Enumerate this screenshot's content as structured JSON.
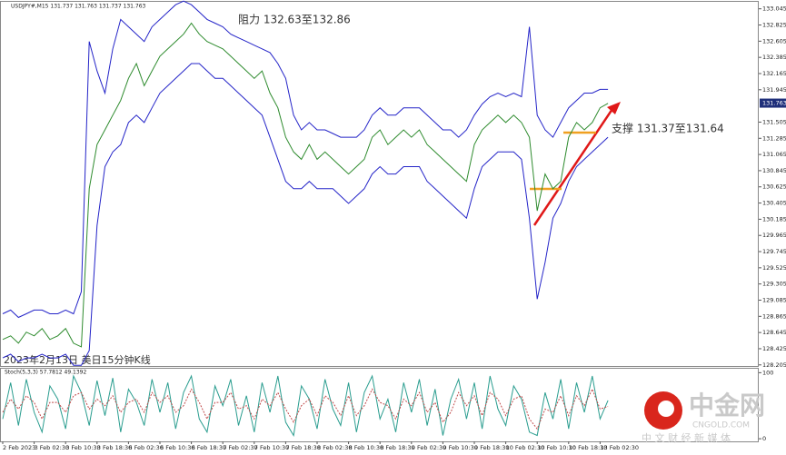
{
  "chart_data": [
    {
      "type": "line",
      "title": "USDJPY#,M15 131.737 131.763 131.737 131.763",
      "annotations": [
        "阻力 132.63至132.86",
        "支撑 131.37至131.64",
        "2023年2月13日 美日15分钟K线"
      ],
      "current_price": 131.763,
      "ylim": [
        128.19,
        133.14
      ],
      "yticks": [
        133.045,
        132.825,
        132.605,
        132.385,
        132.165,
        131.945,
        131.505,
        131.285,
        131.065,
        130.845,
        130.625,
        130.405,
        130.185,
        129.965,
        129.745,
        129.525,
        129.305,
        129.085,
        128.865,
        128.645,
        128.425,
        128.205
      ],
      "series": [
        {
          "name": "close",
          "color": "#2e8b2e",
          "values": [
            128.55,
            128.6,
            128.5,
            128.65,
            128.6,
            128.7,
            128.55,
            128.6,
            128.7,
            128.5,
            128.45,
            130.6,
            131.2,
            131.4,
            131.6,
            131.8,
            132.1,
            132.3,
            132.0,
            132.2,
            132.4,
            132.5,
            132.6,
            132.7,
            132.85,
            132.7,
            132.6,
            132.55,
            132.5,
            132.4,
            132.3,
            132.2,
            132.1,
            132.2,
            131.9,
            131.7,
            131.3,
            131.1,
            131.0,
            131.2,
            131.0,
            131.1,
            131.0,
            130.9,
            130.8,
            130.9,
            131.0,
            131.3,
            131.4,
            131.2,
            131.3,
            131.4,
            131.3,
            131.4,
            131.2,
            131.1,
            131.0,
            130.9,
            130.8,
            130.7,
            131.2,
            131.4,
            131.5,
            131.6,
            131.5,
            131.6,
            131.5,
            131.3,
            130.3,
            130.8,
            130.6,
            130.7,
            131.3,
            131.5,
            131.4,
            131.5,
            131.7,
            131.76
          ]
        },
        {
          "name": "upper",
          "color": "#2424c8",
          "values": [
            128.9,
            128.95,
            128.85,
            128.9,
            128.95,
            128.95,
            128.9,
            128.9,
            128.95,
            128.9,
            129.2,
            132.6,
            132.2,
            131.9,
            132.5,
            132.9,
            132.8,
            132.7,
            132.6,
            132.8,
            132.9,
            133.0,
            133.1,
            133.15,
            133.1,
            133.0,
            132.9,
            132.85,
            132.8,
            132.7,
            132.65,
            132.6,
            132.55,
            132.5,
            132.45,
            132.3,
            132.1,
            131.6,
            131.4,
            131.5,
            131.4,
            131.4,
            131.35,
            131.3,
            131.3,
            131.3,
            131.4,
            131.6,
            131.7,
            131.6,
            131.6,
            131.7,
            131.7,
            131.7,
            131.6,
            131.5,
            131.4,
            131.4,
            131.3,
            131.4,
            131.6,
            131.75,
            131.85,
            131.9,
            131.85,
            131.9,
            131.85,
            132.8,
            131.6,
            131.4,
            131.3,
            131.5,
            131.7,
            131.8,
            131.9,
            131.9,
            131.95,
            131.95
          ]
        },
        {
          "name": "lower",
          "color": "#2424c8",
          "values": [
            128.3,
            128.35,
            128.25,
            128.3,
            128.3,
            128.35,
            128.3,
            128.3,
            128.35,
            128.2,
            128.2,
            128.4,
            130.1,
            130.9,
            131.1,
            131.2,
            131.5,
            131.6,
            131.5,
            131.7,
            131.9,
            132.0,
            132.1,
            132.2,
            132.3,
            132.3,
            132.2,
            132.1,
            132.1,
            132.0,
            131.9,
            131.8,
            131.7,
            131.6,
            131.3,
            131.0,
            130.7,
            130.6,
            130.6,
            130.7,
            130.6,
            130.6,
            130.6,
            130.5,
            130.4,
            130.5,
            130.6,
            130.8,
            130.9,
            130.8,
            130.8,
            130.9,
            130.9,
            130.9,
            130.7,
            130.6,
            130.5,
            130.4,
            130.3,
            130.2,
            130.6,
            130.9,
            131.0,
            131.1,
            131.1,
            131.1,
            131.0,
            130.2,
            129.1,
            129.6,
            130.2,
            130.4,
            130.7,
            130.9,
            131.0,
            131.1,
            131.2,
            131.3
          ]
        }
      ]
    },
    {
      "type": "line",
      "title": "Stoch(5,3,3) 57.7812 49.1392",
      "ylim": [
        -4,
        106
      ],
      "yticks": [
        100,
        0
      ],
      "categories": [
        "2 Feb 2023",
        null,
        null,
        null,
        "3 Feb 02:30",
        null,
        null,
        null,
        "3 Feb 10:30",
        null,
        null,
        null,
        "3 Feb 18:30",
        null,
        null,
        null,
        "6 Feb 02:30",
        null,
        null,
        null,
        "6 Feb 10:30",
        null,
        null,
        null,
        "6 Feb 18:30",
        null,
        null,
        null,
        "7 Feb 02:30",
        null,
        null,
        null,
        "7 Feb 10:30",
        null,
        null,
        null,
        "7 Feb 18:30",
        null,
        null,
        null,
        "8 Feb 02:30",
        null,
        null,
        null,
        "8 Feb 10:30",
        null,
        null,
        null,
        "8 Feb 18:30",
        null,
        null,
        null,
        "9 Feb 02:30",
        null,
        null,
        null,
        "9 Feb 10:30",
        null,
        null,
        null,
        "9 Feb 18:30",
        null,
        null,
        null,
        "10 Feb 02:30",
        null,
        null,
        null,
        "10 Feb 10:30",
        null,
        null,
        null,
        "10 Feb 18:30",
        null,
        null,
        null,
        "13 Feb 02:30",
        null
      ],
      "series": [
        {
          "name": "main",
          "color": "#2a9d8f",
          "values": [
            30,
            85,
            20,
            90,
            40,
            10,
            80,
            60,
            15,
            95,
            70,
            20,
            88,
            35,
            92,
            10,
            75,
            55,
            20,
            90,
            40,
            85,
            15,
            70,
            95,
            30,
            10,
            80,
            50,
            90,
            20,
            65,
            10,
            85,
            40,
            95,
            25,
            5,
            80,
            60,
            15,
            90,
            45,
            20,
            85,
            10,
            70,
            95,
            30,
            60,
            10,
            85,
            40,
            90,
            20,
            75,
            5,
            60,
            90,
            30,
            85,
            15,
            95,
            45,
            20,
            80,
            60,
            10,
            5,
            70,
            30,
            90,
            15,
            85,
            40,
            95,
            30,
            58
          ]
        },
        {
          "name": "signal",
          "color": "#c04a4a",
          "values": [
            40,
            60,
            45,
            65,
            55,
            30,
            55,
            55,
            40,
            65,
            70,
            45,
            60,
            50,
            65,
            40,
            55,
            60,
            40,
            70,
            55,
            65,
            40,
            50,
            75,
            55,
            30,
            55,
            55,
            70,
            45,
            50,
            30,
            60,
            50,
            70,
            45,
            25,
            50,
            60,
            35,
            65,
            55,
            35,
            65,
            35,
            50,
            75,
            55,
            50,
            30,
            60,
            50,
            70,
            40,
            55,
            25,
            40,
            70,
            50,
            65,
            35,
            70,
            60,
            35,
            60,
            65,
            30,
            15,
            45,
            40,
            65,
            35,
            65,
            50,
            75,
            45,
            49
          ]
        }
      ]
    }
  ],
  "logo": {
    "name": "中金网",
    "site": "CNGOLD.COM",
    "tagline": "中 文 财 经 新 媒 体"
  }
}
